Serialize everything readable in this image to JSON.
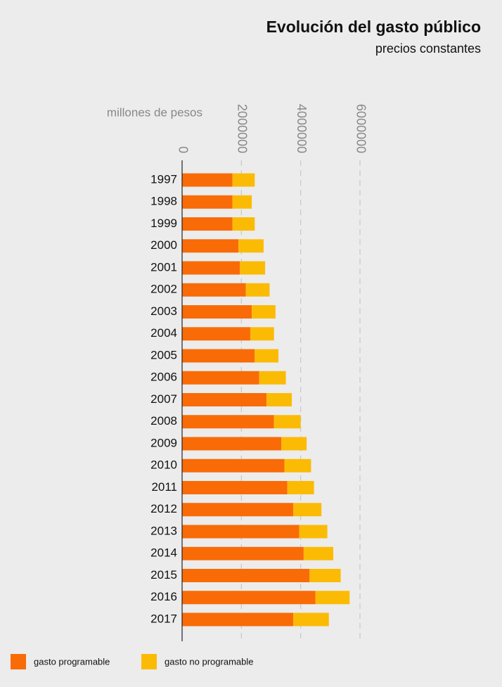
{
  "chart_data": {
    "type": "stacked-bar-horizontal",
    "title": "Evolución del gasto público",
    "subtitle": "precios constantes",
    "x_label": "millones de pesos",
    "categories": [
      "1997",
      "1998",
      "1999",
      "2000",
      "2001",
      "2002",
      "2003",
      "2004",
      "2005",
      "2006",
      "2007",
      "2008",
      "2009",
      "2010",
      "2011",
      "2012",
      "2013",
      "2014",
      "2015",
      "2016",
      "2017"
    ],
    "series": [
      {
        "name": "gasto programable",
        "color": "#f96b07",
        "values": [
          1700000,
          1700000,
          1700000,
          1900000,
          1950000,
          2150000,
          2350000,
          2300000,
          2450000,
          2600000,
          2850000,
          3100000,
          3350000,
          3450000,
          3550000,
          3750000,
          3950000,
          4100000,
          4300000,
          4500000,
          3750000
        ]
      },
      {
        "name": "gasto no programable",
        "color": "#fbbb05",
        "values": [
          750000,
          650000,
          750000,
          850000,
          850000,
          800000,
          800000,
          800000,
          800000,
          900000,
          850000,
          900000,
          850000,
          900000,
          900000,
          950000,
          950000,
          1000000,
          1050000,
          1150000,
          1200000
        ]
      }
    ],
    "xlim": [
      0,
      6000000
    ],
    "xticks": [
      0,
      2000000,
      4000000,
      6000000
    ],
    "grid": true,
    "legend": "bottom-left"
  }
}
